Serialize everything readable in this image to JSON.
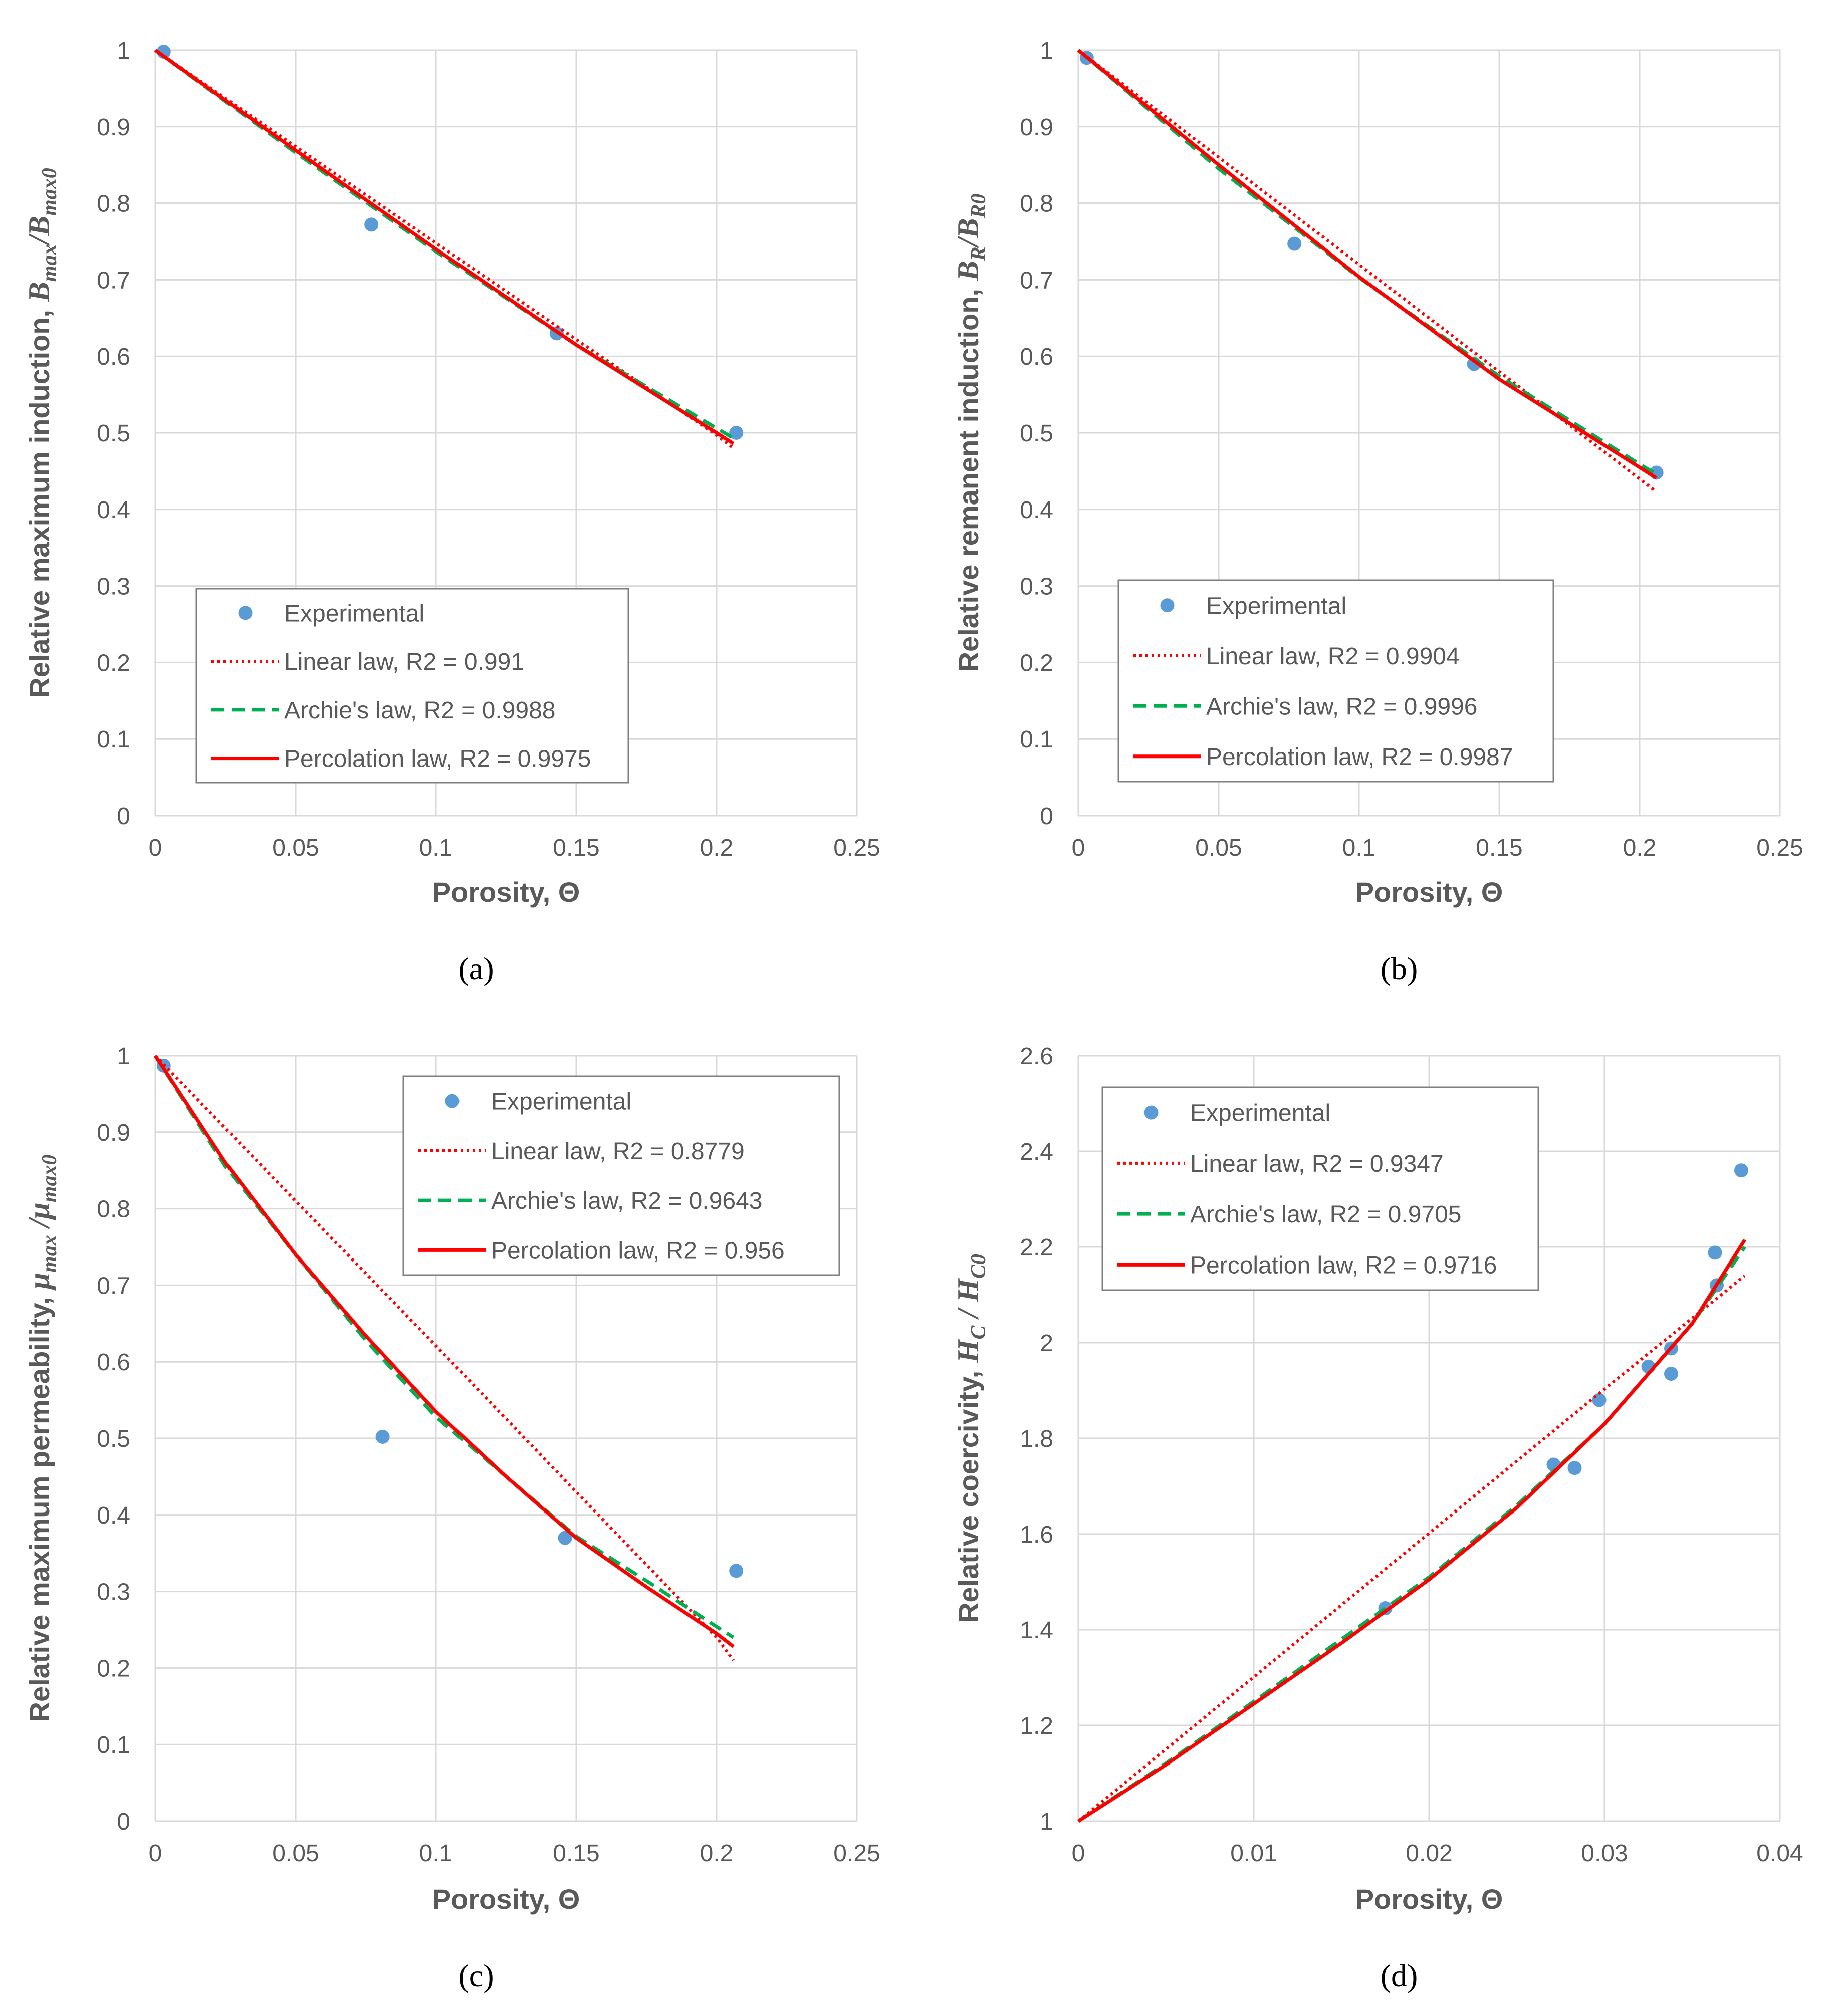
{
  "colors": {
    "grid": "#d9d9d9",
    "axis_text": "#595959",
    "experimental": "#5b9bd5",
    "linear": "#ff0000",
    "archie": "#00b050",
    "percolation": "#ff0000",
    "legend_border": "#7f7f7f"
  },
  "chart_data": [
    {
      "type": "scatter",
      "panel_label": "(a)",
      "xlabel": "Porosity, Θ",
      "ylabel": {
        "prefix": "Relative maximum induction, ",
        "formula": [
          [
            "B",
            ""
          ],
          [
            "max",
            "sub"
          ],
          [
            "/B",
            ""
          ],
          [
            "max0",
            "sub"
          ]
        ]
      },
      "xlim": [
        0,
        0.25
      ],
      "ylim": [
        0,
        1
      ],
      "xticks": [
        "0",
        "0.05",
        "0.1",
        "0.15",
        "0.2",
        "0.25"
      ],
      "yticks": [
        "0",
        "0.1",
        "0.2",
        "0.3",
        "0.4",
        "0.5",
        "0.6",
        "0.7",
        "0.8",
        "0.9",
        "1"
      ],
      "legend_position": "bottom-left",
      "series": [
        {
          "name": "Experimental",
          "kind": "scatter",
          "x": [
            0.003,
            0.077,
            0.143,
            0.207
          ],
          "y": [
            0.998,
            0.772,
            0.63,
            0.5
          ]
        },
        {
          "name": "Linear law, R2 = 0.991",
          "kind": "dotted",
          "x": [
            0,
            0.05,
            0.1,
            0.15,
            0.2,
            0.206
          ],
          "y": [
            1.0,
            0.874,
            0.748,
            0.622,
            0.497,
            0.48
          ]
        },
        {
          "name": "Archie's law, R2 = 0.9988",
          "kind": "dashed",
          "x": [
            0,
            0.05,
            0.1,
            0.15,
            0.2,
            0.206
          ],
          "y": [
            1.0,
            0.866,
            0.737,
            0.615,
            0.506,
            0.493
          ]
        },
        {
          "name": "Percolation law, R2 = 0.9975",
          "kind": "solid",
          "x": [
            0,
            0.05,
            0.1,
            0.15,
            0.2,
            0.206
          ],
          "y": [
            1.0,
            0.869,
            0.74,
            0.615,
            0.5,
            0.486
          ]
        }
      ]
    },
    {
      "type": "scatter",
      "panel_label": "(b)",
      "xlabel": "Porosity, Θ",
      "ylabel": {
        "prefix": "Relative remanent induction, ",
        "formula": [
          [
            "B",
            ""
          ],
          [
            "R",
            "sub"
          ],
          [
            "/B",
            ""
          ],
          [
            "R0",
            "sub"
          ]
        ]
      },
      "xlim": [
        0,
        0.25
      ],
      "ylim": [
        0,
        1
      ],
      "xticks": [
        "0",
        "0.05",
        "0.1",
        "0.15",
        "0.2",
        "0.25"
      ],
      "yticks": [
        "0",
        "0.1",
        "0.2",
        "0.3",
        "0.4",
        "0.5",
        "0.6",
        "0.7",
        "0.8",
        "0.9",
        "1"
      ],
      "legend_position": "bottom-left",
      "series": [
        {
          "name": "Experimental",
          "kind": "scatter",
          "x": [
            0.003,
            0.077,
            0.141,
            0.206
          ],
          "y": [
            0.99,
            0.747,
            0.59,
            0.448
          ]
        },
        {
          "name": "Linear law, R2 = 0.9904",
          "kind": "dotted",
          "x": [
            0,
            0.05,
            0.1,
            0.15,
            0.2,
            0.206
          ],
          "y": [
            1.0,
            0.86,
            0.72,
            0.58,
            0.44,
            0.423
          ]
        },
        {
          "name": "Archie's law, R2 = 0.9996",
          "kind": "dashed",
          "x": [
            0,
            0.05,
            0.1,
            0.15,
            0.2,
            0.206
          ],
          "y": [
            1.0,
            0.845,
            0.703,
            0.574,
            0.459,
            0.446
          ]
        },
        {
          "name": "Percolation law, R2 = 0.9987",
          "kind": "solid",
          "x": [
            0,
            0.05,
            0.1,
            0.15,
            0.2,
            0.206
          ],
          "y": [
            1.0,
            0.85,
            0.704,
            0.57,
            0.455,
            0.441
          ]
        }
      ]
    },
    {
      "type": "scatter",
      "panel_label": "(c)",
      "xlabel": "Porosity, Θ",
      "ylabel": {
        "prefix": "Relative maximum permeability, ",
        "formula": [
          [
            "μ",
            ""
          ],
          [
            "max",
            "sub"
          ],
          [
            " /μ",
            ""
          ],
          [
            "max0",
            "sub"
          ]
        ]
      },
      "xlim": [
        0,
        0.25
      ],
      "ylim": [
        0,
        1
      ],
      "xticks": [
        "0",
        "0.05",
        "0.1",
        "0.15",
        "0.2",
        "0.25"
      ],
      "yticks": [
        "0",
        "0.1",
        "0.2",
        "0.3",
        "0.4",
        "0.5",
        "0.6",
        "0.7",
        "0.8",
        "0.9",
        "1"
      ],
      "legend_position": "top-right",
      "series": [
        {
          "name": "Experimental",
          "kind": "scatter",
          "x": [
            0.003,
            0.081,
            0.146,
            0.207
          ],
          "y": [
            0.987,
            0.502,
            0.37,
            0.327
          ]
        },
        {
          "name": "Linear law, R2 = 0.8779",
          "kind": "dotted",
          "x": [
            0,
            0.05,
            0.1,
            0.15,
            0.2,
            0.206
          ],
          "y": [
            1.0,
            0.81,
            0.621,
            0.43,
            0.24,
            0.21
          ]
        },
        {
          "name": "Archie's law, R2 = 0.9643",
          "kind": "dashed",
          "x": [
            0,
            0.025,
            0.05,
            0.075,
            0.1,
            0.125,
            0.15,
            0.175,
            0.2,
            0.206
          ],
          "y": [
            1.0,
            0.855,
            0.74,
            0.628,
            0.528,
            0.45,
            0.372,
            0.314,
            0.254,
            0.24
          ]
        },
        {
          "name": "Percolation law, R2 = 0.956",
          "kind": "solid",
          "x": [
            0,
            0.025,
            0.05,
            0.075,
            0.1,
            0.125,
            0.15,
            0.175,
            0.2,
            0.206
          ],
          "y": [
            1.0,
            0.86,
            0.74,
            0.634,
            0.535,
            0.45,
            0.37,
            0.306,
            0.245,
            0.228
          ]
        }
      ]
    },
    {
      "type": "scatter",
      "panel_label": "(d)",
      "xlabel": "Porosity, Θ",
      "ylabel": {
        "prefix": "Relative coercivity, ",
        "formula": [
          [
            "H",
            ""
          ],
          [
            "C",
            "sub"
          ],
          [
            " / H",
            ""
          ],
          [
            "C0",
            "sub"
          ]
        ]
      },
      "xlim": [
        0,
        0.04
      ],
      "ylim": [
        1,
        2.6
      ],
      "xticks": [
        "0",
        "0.01",
        "0.02",
        "0.03",
        "0.04"
      ],
      "yticks": [
        "1",
        "1.2",
        "1.4",
        "1.6",
        "1.8",
        "2",
        "2.2",
        "2.4",
        "2.6"
      ],
      "legend_position": "top-left",
      "series": [
        {
          "name": "Experimental",
          "kind": "scatter",
          "x": [
            0.0175,
            0.0271,
            0.0283,
            0.0297,
            0.0325,
            0.0338,
            0.0338,
            0.0363,
            0.0364,
            0.0378
          ],
          "y": [
            1.445,
            1.745,
            1.738,
            1.88,
            1.95,
            1.988,
            1.935,
            2.188,
            2.12,
            2.36
          ]
        },
        {
          "name": "Linear law, R2 = 0.9347",
          "kind": "dotted",
          "x": [
            0,
            0.01,
            0.02,
            0.03,
            0.038
          ],
          "y": [
            1.0,
            1.301,
            1.602,
            1.903,
            2.14
          ]
        },
        {
          "name": "Archie's law, R2 = 0.9705",
          "kind": "dashed",
          "x": [
            0,
            0.005,
            0.01,
            0.015,
            0.02,
            0.025,
            0.03,
            0.035,
            0.038
          ],
          "y": [
            1.0,
            1.121,
            1.25,
            1.38,
            1.51,
            1.66,
            1.83,
            2.04,
            2.2
          ]
        },
        {
          "name": "Percolation law, R2 = 0.9716",
          "kind": "solid",
          "x": [
            0,
            0.005,
            0.01,
            0.015,
            0.02,
            0.025,
            0.03,
            0.035,
            0.038
          ],
          "y": [
            1.0,
            1.118,
            1.245,
            1.372,
            1.505,
            1.655,
            1.83,
            2.04,
            2.215
          ]
        }
      ]
    }
  ]
}
